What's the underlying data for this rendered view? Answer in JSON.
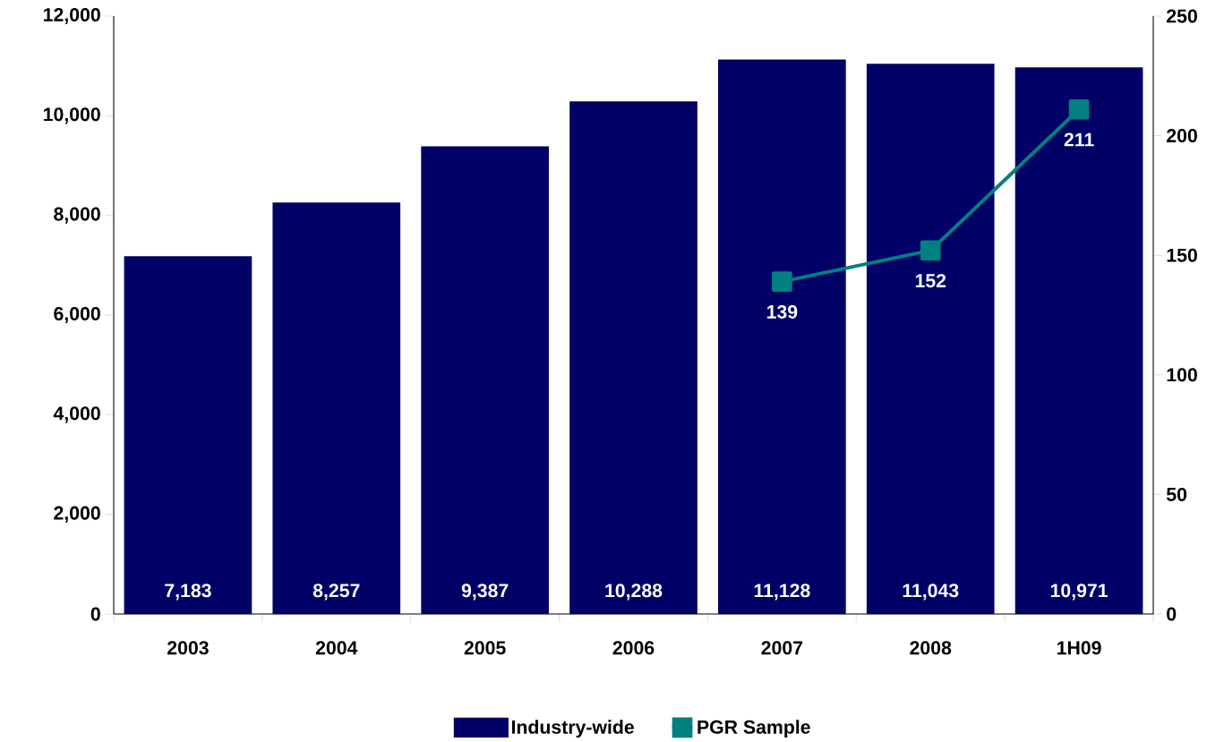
{
  "chart_data": {
    "type": "bar",
    "categories": [
      "2003",
      "2004",
      "2005",
      "2006",
      "2007",
      "2008",
      "1H09"
    ],
    "series": [
      {
        "name": "Industry-wide",
        "color": "#000066",
        "values": [
          7183,
          8257,
          9387,
          10288,
          11128,
          11043,
          10971
        ],
        "value_labels": [
          "7,183",
          "8,257",
          "9,387",
          "10,288",
          "11,128",
          "11,043",
          "10,971"
        ]
      },
      {
        "name": "PGR Sample",
        "type": "line",
        "axis": "y2",
        "color": "#008080",
        "marker": "square",
        "values": [
          null,
          null,
          null,
          null,
          139,
          152,
          211
        ],
        "value_labels": [
          null,
          null,
          null,
          null,
          "139",
          "152",
          "211"
        ]
      }
    ],
    "ylim": [
      0,
      12000
    ],
    "yticks": [
      0,
      {
        "value": 2000,
        "label": "2,000"
      },
      {
        "value": 4000,
        "label": "4,000"
      },
      {
        "value": 6000,
        "label": "6,000"
      },
      {
        "value": 8000,
        "label": "8,000"
      },
      {
        "value": 10000,
        "label": "10,000"
      },
      {
        "value": 12000,
        "label": "12,000"
      }
    ],
    "y2lim": [
      0,
      250
    ],
    "y2ticks": [
      0,
      50,
      100,
      150,
      200,
      250
    ],
    "legend": "bottom",
    "grid": false
  }
}
